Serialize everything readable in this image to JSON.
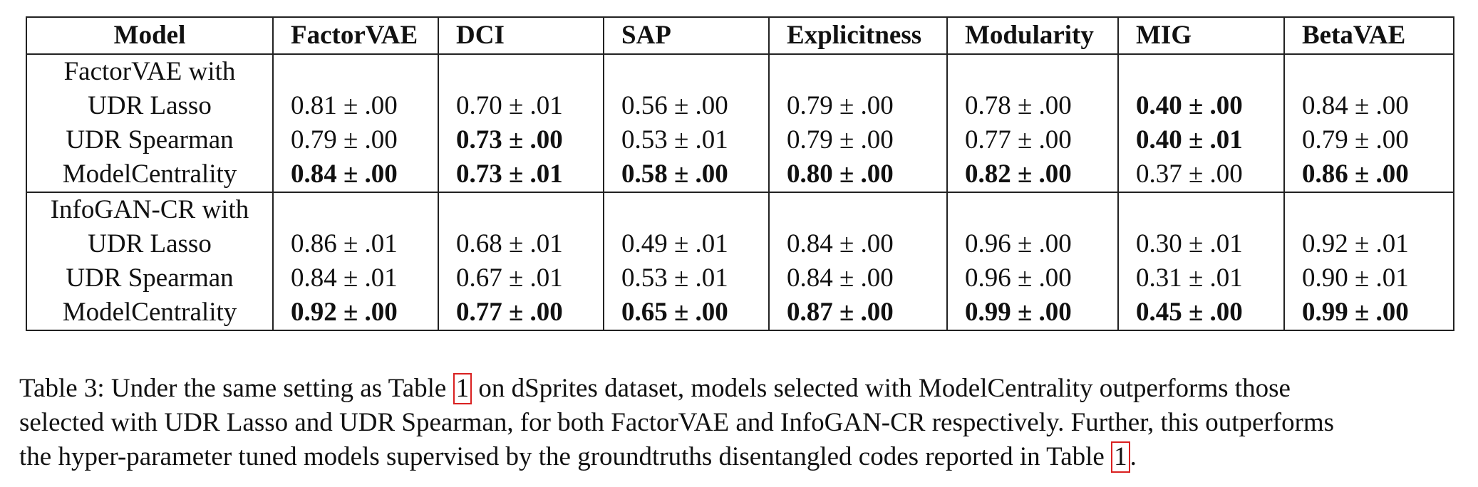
{
  "table": {
    "headers": [
      "Model",
      "FactorVAE",
      "DCI",
      "SAP",
      "Explicitness",
      "Modularity",
      "MIG",
      "BetaVAE"
    ],
    "groups": [
      {
        "title": "FactorVAE with",
        "rows": [
          {
            "model": "UDR Lasso",
            "cells": [
              {
                "text": "0.81 ± .00",
                "bold": false
              },
              {
                "text": "0.70 ± .01",
                "bold": false
              },
              {
                "text": "0.56 ± .00",
                "bold": false
              },
              {
                "text": "0.79 ± .00",
                "bold": false
              },
              {
                "text": "0.78 ± .00",
                "bold": false
              },
              {
                "text": "0.40 ± .00",
                "bold": true
              },
              {
                "text": "0.84 ± .00",
                "bold": false
              }
            ]
          },
          {
            "model": "UDR Spearman",
            "cells": [
              {
                "text": "0.79 ± .00",
                "bold": false
              },
              {
                "text": "0.73 ± .00",
                "bold": true
              },
              {
                "text": "0.53 ± .01",
                "bold": false
              },
              {
                "text": "0.79 ± .00",
                "bold": false
              },
              {
                "text": "0.77 ± .00",
                "bold": false
              },
              {
                "text": "0.40 ± .01",
                "bold": true
              },
              {
                "text": "0.79 ± .00",
                "bold": false
              }
            ]
          },
          {
            "model": "ModelCentrality",
            "cells": [
              {
                "text": "0.84 ± .00",
                "bold": true
              },
              {
                "text": "0.73 ± .01",
                "bold": true
              },
              {
                "text": "0.58 ± .00",
                "bold": true
              },
              {
                "text": "0.80 ± .00",
                "bold": true
              },
              {
                "text": "0.82 ± .00",
                "bold": true
              },
              {
                "text": "0.37 ± .00",
                "bold": false
              },
              {
                "text": "0.86 ± .00",
                "bold": true
              }
            ]
          }
        ]
      },
      {
        "title": "InfoGAN-CR with",
        "rows": [
          {
            "model": "UDR Lasso",
            "cells": [
              {
                "text": "0.86 ± .01",
                "bold": false
              },
              {
                "text": "0.68 ± .01",
                "bold": false
              },
              {
                "text": "0.49 ± .01",
                "bold": false
              },
              {
                "text": "0.84 ± .00",
                "bold": false
              },
              {
                "text": "0.96 ± .00",
                "bold": false
              },
              {
                "text": "0.30 ± .01",
                "bold": false
              },
              {
                "text": "0.92 ± .01",
                "bold": false
              }
            ]
          },
          {
            "model": "UDR Spearman",
            "cells": [
              {
                "text": "0.84 ± .01",
                "bold": false
              },
              {
                "text": "0.67 ± .01",
                "bold": false
              },
              {
                "text": "0.53 ± .01",
                "bold": false
              },
              {
                "text": "0.84 ± .00",
                "bold": false
              },
              {
                "text": "0.96 ± .00",
                "bold": false
              },
              {
                "text": "0.31 ± .01",
                "bold": false
              },
              {
                "text": "0.90 ± .01",
                "bold": false
              }
            ]
          },
          {
            "model": "ModelCentrality",
            "cells": [
              {
                "text": "0.92 ± .00",
                "bold": true
              },
              {
                "text": "0.77 ± .00",
                "bold": true
              },
              {
                "text": "0.65 ± .00",
                "bold": true
              },
              {
                "text": "0.87 ± .00",
                "bold": true
              },
              {
                "text": "0.99 ± .00",
                "bold": true
              },
              {
                "text": "0.45 ± .00",
                "bold": true
              },
              {
                "text": "0.99 ± .00",
                "bold": true
              }
            ]
          }
        ]
      }
    ]
  },
  "caption": {
    "line1_pre": "Table 3: Under the same setting as Table ",
    "line1_ref": "1",
    "line1_post": " on dSprites dataset, models selected with ModelCentrality outperforms those",
    "line2": "selected with UDR Lasso and UDR Spearman, for both FactorVAE and InfoGAN-CR respectively. Further, this outperforms",
    "line3_pre": "the hyper-parameter tuned models supervised by the groundtruths disentangled codes reported in Table ",
    "line3_ref": "1",
    "line3_post": "."
  }
}
